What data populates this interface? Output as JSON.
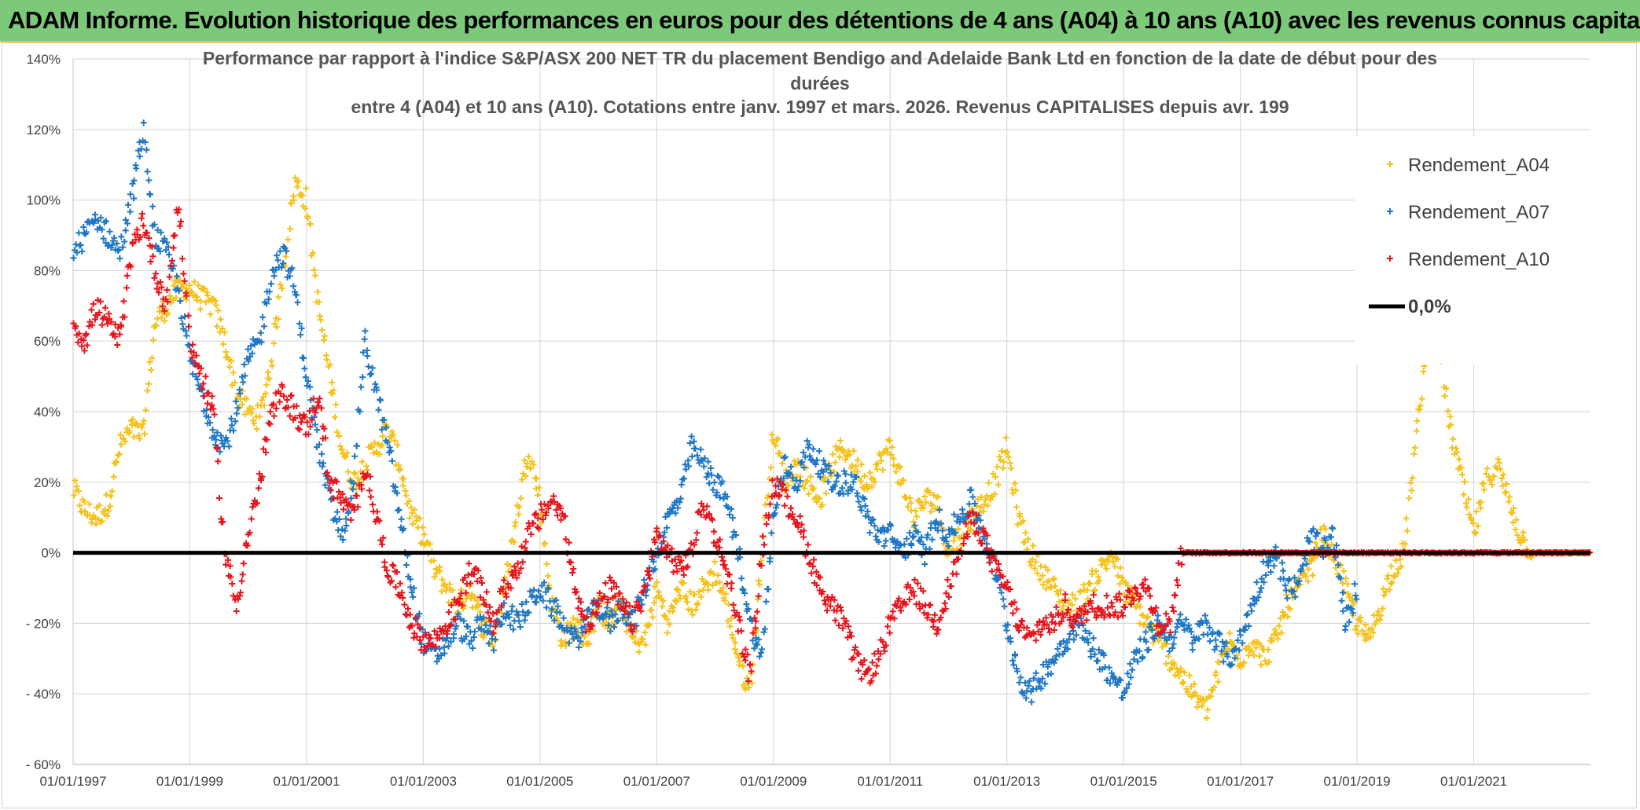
{
  "banner": {
    "title": "ADAM Informe. Evolution historique des performances en euros pour des détentions de 4 ans (A04) à 10 ans (A10) avec les revenus connus capitalisés"
  },
  "colors": {
    "banner_bg": "#7dc97a",
    "banner_border": "#e8c23a",
    "series_A04": "#f5c21b",
    "series_A07": "#1f77c4",
    "series_A10": "#e8141c",
    "zero_line": "#000000",
    "grid": "#d9d9d9"
  },
  "chart_data": {
    "type": "scatter",
    "title_lines": [
      "Performance par rapport à l'indice S&P/ASX 200 NET TR  du placement Bendigo and Adelaide Bank Ltd en fonction de la date de début pour des",
      "durées",
      "entre 4 (A04) et 10 ans (A10). Cotations entre janv. 1997 et mars. 2026. Revenus CAPITALISES depuis avr. 199"
    ],
    "xlabel": "",
    "ylabel": "",
    "xlim": [
      1997.0,
      2023.0
    ],
    "ylim": [
      -60,
      140
    ],
    "yticks": [
      -60,
      -40,
      -20,
      0,
      20,
      40,
      60,
      80,
      100,
      120,
      140
    ],
    "ytick_labels": [
      "- 60%",
      "- 40%",
      "- 20%",
      "0%",
      "20%",
      "40%",
      "60%",
      "80%",
      "100%",
      "120%",
      "140%"
    ],
    "xticks": [
      1997,
      1999,
      2001,
      2003,
      2005,
      2007,
      2009,
      2011,
      2013,
      2015,
      2017,
      2019,
      2021
    ],
    "xtick_labels": [
      "01/01/1997",
      "01/01/1999",
      "01/01/2001",
      "01/01/2003",
      "01/01/2005",
      "01/01/2007",
      "01/01/2009",
      "01/01/2011",
      "01/01/2013",
      "01/01/2015",
      "01/01/2017",
      "01/01/2019",
      "01/01/2021"
    ],
    "legend_position": "right",
    "legend": [
      "Rendement_A04",
      "Rendement_A07",
      "Rendement_A10",
      "0,0%"
    ],
    "reference_line": {
      "name": "0,0%",
      "y": 0
    },
    "series": [
      {
        "name": "Rendement_A04",
        "x": [
          1997.0,
          1997.2,
          1997.4,
          1997.6,
          1997.8,
          1998.0,
          1998.2,
          1998.4,
          1998.6,
          1998.8,
          1999.0,
          1999.2,
          1999.4,
          1999.6,
          1999.8,
          2000.0,
          2000.2,
          2000.4,
          2000.6,
          2000.8,
          2001.0,
          2001.2,
          2001.4,
          2001.6,
          2001.8,
          2002.0,
          2002.2,
          2002.4,
          2002.6,
          2002.8,
          2003.0,
          2003.2,
          2003.4,
          2003.6,
          2003.8,
          2004.0,
          2004.2,
          2004.4,
          2004.6,
          2004.8,
          2005.0,
          2005.2,
          2005.4,
          2005.6,
          2005.8,
          2006.0,
          2006.2,
          2006.4,
          2006.6,
          2006.8,
          2007.0,
          2007.2,
          2007.4,
          2007.6,
          2007.8,
          2008.0,
          2008.2,
          2008.4,
          2008.6,
          2008.8,
          2009.0,
          2009.2,
          2009.4,
          2009.6,
          2009.8,
          2010.0,
          2010.2,
          2010.4,
          2010.6,
          2010.8,
          2011.0,
          2011.2,
          2011.4,
          2011.6,
          2011.8,
          2012.0,
          2012.2,
          2012.4,
          2012.6,
          2012.8,
          2013.0,
          2013.2,
          2013.4,
          2013.6,
          2013.8,
          2014.0,
          2014.2,
          2014.4,
          2014.6,
          2014.8,
          2015.0,
          2015.2,
          2015.4,
          2015.6,
          2015.8,
          2016.0,
          2016.2,
          2016.4,
          2016.6,
          2016.8,
          2017.0,
          2017.2,
          2017.4,
          2017.6,
          2017.8,
          2018.0,
          2018.2,
          2018.4,
          2018.6,
          2018.8,
          2019.0,
          2019.2,
          2019.4,
          2019.6,
          2019.8,
          2020.0,
          2020.2,
          2020.4,
          2020.6,
          2020.8,
          2021.0,
          2021.2,
          2021.4,
          2021.6,
          2021.8,
          2022.0,
          2022.2,
          2022.4,
          2022.6,
          2022.8,
          2023.0
        ],
        "values": [
          18,
          12,
          10,
          14,
          30,
          35,
          33,
          65,
          70,
          75,
          75,
          72,
          70,
          60,
          45,
          40,
          38,
          55,
          80,
          105,
          100,
          70,
          50,
          30,
          20,
          25,
          30,
          35,
          25,
          10,
          5,
          -5,
          -10,
          -15,
          -10,
          -20,
          -25,
          -10,
          10,
          30,
          15,
          -15,
          -25,
          -20,
          -25,
          -15,
          -20,
          -15,
          -25,
          -25,
          -10,
          -20,
          -10,
          -15,
          -10,
          -5,
          -15,
          -30,
          -40,
          0,
          35,
          20,
          25,
          20,
          15,
          25,
          30,
          25,
          20,
          25,
          30,
          20,
          10,
          15,
          15,
          0,
          5,
          10,
          15,
          20,
          30,
          10,
          0,
          -5,
          -10,
          -15,
          -15,
          -10,
          -5,
          0,
          -10,
          -15,
          -20,
          -25,
          -30,
          -35,
          -40,
          -45,
          -35,
          -25,
          -30,
          -25,
          -30,
          -25,
          -15,
          -10,
          -5,
          5,
          0,
          -10,
          -20,
          -25,
          -15,
          -5,
          0,
          30,
          60,
          60,
          35,
          20,
          5,
          20,
          25,
          15,
          5,
          0,
          0,
          0,
          0,
          0,
          0
        ],
        "note": "values_approx_read_from_scatter"
      },
      {
        "name": "Rendement_A07",
        "x": [
          1997.0,
          1997.2,
          1997.4,
          1997.6,
          1997.8,
          1998.0,
          1998.2,
          1998.4,
          1998.6,
          1998.8,
          1999.0,
          1999.2,
          1999.4,
          1999.6,
          1999.8,
          2000.0,
          2000.2,
          2000.4,
          2000.6,
          2000.8,
          2001.0,
          2001.2,
          2001.4,
          2001.6,
          2001.8,
          2002.0,
          2002.2,
          2002.4,
          2002.6,
          2002.8,
          2003.0,
          2003.2,
          2003.4,
          2003.6,
          2003.8,
          2004.0,
          2004.2,
          2004.4,
          2004.6,
          2004.8,
          2005.0,
          2005.2,
          2005.4,
          2005.6,
          2005.8,
          2006.0,
          2006.2,
          2006.4,
          2006.6,
          2006.8,
          2007.0,
          2007.2,
          2007.4,
          2007.6,
          2007.8,
          2008.0,
          2008.2,
          2008.4,
          2008.6,
          2008.8,
          2009.0,
          2009.2,
          2009.4,
          2009.6,
          2009.8,
          2010.0,
          2010.2,
          2010.4,
          2010.6,
          2010.8,
          2011.0,
          2011.2,
          2011.4,
          2011.6,
          2011.8,
          2012.0,
          2012.2,
          2012.4,
          2012.6,
          2012.8,
          2013.0,
          2013.2,
          2013.4,
          2013.6,
          2013.8,
          2014.0,
          2014.2,
          2014.4,
          2014.6,
          2014.8,
          2015.0,
          2015.2,
          2015.4,
          2015.6,
          2015.8,
          2016.0,
          2016.2,
          2016.4,
          2016.6,
          2016.8,
          2017.0,
          2017.2,
          2017.4,
          2017.6,
          2017.8,
          2018.0,
          2018.2,
          2018.4,
          2018.6,
          2018.8,
          2019.0
        ],
        "values": [
          85,
          90,
          95,
          90,
          85,
          100,
          120,
          90,
          85,
          75,
          55,
          45,
          35,
          30,
          40,
          55,
          60,
          80,
          85,
          75,
          50,
          30,
          15,
          5,
          20,
          60,
          45,
          30,
          10,
          -10,
          -25,
          -30,
          -25,
          -20,
          -25,
          -20,
          -25,
          -15,
          -20,
          -15,
          -10,
          -15,
          -20,
          -25,
          -20,
          -15,
          -20,
          -15,
          -20,
          -10,
          0,
          10,
          15,
          30,
          25,
          20,
          15,
          0,
          -20,
          -30,
          10,
          25,
          20,
          30,
          25,
          20,
          20,
          20,
          10,
          5,
          5,
          0,
          5,
          0,
          10,
          5,
          10,
          15,
          5,
          -5,
          -20,
          -35,
          -40,
          -35,
          -30,
          -25,
          -20,
          -25,
          -30,
          -35,
          -40,
          -30,
          -25,
          -20,
          -25,
          -20,
          -25,
          -20,
          -25,
          -30,
          -25,
          -15,
          -5,
          0,
          -10,
          -10,
          5,
          0,
          5,
          -20,
          -10
        ],
        "note": "values_approx_read_from_scatter"
      },
      {
        "name": "Rendement_A10",
        "x": [
          1997.0,
          1997.2,
          1997.4,
          1997.6,
          1997.8,
          1998.0,
          1998.2,
          1998.4,
          1998.6,
          1998.8,
          1999.0,
          1999.2,
          1999.4,
          1999.6,
          1999.8,
          2000.0,
          2000.2,
          2000.4,
          2000.6,
          2000.8,
          2001.0,
          2001.2,
          2001.4,
          2001.6,
          2001.8,
          2002.0,
          2002.2,
          2002.4,
          2002.6,
          2002.8,
          2003.0,
          2003.2,
          2003.4,
          2003.6,
          2003.8,
          2004.0,
          2004.2,
          2004.4,
          2004.6,
          2004.8,
          2005.0,
          2005.2,
          2005.4,
          2005.6,
          2005.8,
          2006.0,
          2006.2,
          2006.4,
          2006.6,
          2006.8,
          2007.0,
          2007.2,
          2007.4,
          2007.6,
          2007.8,
          2008.0,
          2008.2,
          2008.4,
          2008.6,
          2008.8,
          2009.0,
          2009.2,
          2009.4,
          2009.6,
          2009.8,
          2010.0,
          2010.2,
          2010.4,
          2010.6,
          2010.8,
          2011.0,
          2011.2,
          2011.4,
          2011.6,
          2011.8,
          2012.0,
          2012.2,
          2012.4,
          2012.6,
          2012.8,
          2013.0,
          2013.2,
          2013.4,
          2013.6,
          2013.8,
          2014.0,
          2014.2,
          2014.4,
          2014.6,
          2014.8,
          2015.0,
          2015.2,
          2015.4,
          2015.6,
          2015.8,
          2016.0,
          2016.2,
          2016.4,
          2016.6,
          2016.8,
          2017.0,
          2017.2,
          2017.4,
          2017.6,
          2017.8,
          2018.0,
          2018.2,
          2018.4,
          2018.6,
          2018.8,
          2019.0,
          2019.2,
          2019.4,
          2019.6,
          2019.8,
          2020.0,
          2020.2,
          2020.4,
          2020.6,
          2020.8,
          2021.0,
          2021.2,
          2021.4,
          2021.6,
          2021.8,
          2022.0,
          2022.2,
          2022.4,
          2022.6,
          2022.8,
          2023.0
        ],
        "values": [
          65,
          60,
          70,
          65,
          60,
          85,
          95,
          80,
          70,
          100,
          60,
          50,
          40,
          0,
          -15,
          5,
          20,
          40,
          45,
          40,
          35,
          45,
          20,
          15,
          10,
          25,
          10,
          -5,
          -10,
          -20,
          -25,
          -25,
          -20,
          -15,
          -5,
          -10,
          -20,
          -10,
          -5,
          5,
          10,
          15,
          10,
          -10,
          -20,
          -15,
          -10,
          -15,
          -20,
          -10,
          5,
          0,
          -5,
          0,
          15,
          5,
          -5,
          -20,
          -35,
          0,
          20,
          15,
          10,
          0,
          -10,
          -15,
          -20,
          -30,
          -35,
          -30,
          -20,
          -15,
          -10,
          -15,
          -20,
          -10,
          0,
          10,
          5,
          -5,
          -10,
          -20,
          -25,
          -20,
          -20,
          -15,
          -20,
          -15,
          -15,
          -15,
          -15,
          -10,
          -10,
          -20,
          -20,
          0,
          0,
          0,
          0,
          0,
          0,
          0,
          0,
          0,
          0,
          0,
          0,
          0,
          0,
          0,
          0,
          0,
          0,
          0,
          0,
          0,
          0,
          0,
          0,
          0,
          0,
          0,
          0,
          0,
          0,
          0,
          0,
          0,
          0,
          0,
          0
        ],
        "note": "values_approx_read_from_scatter"
      }
    ]
  }
}
